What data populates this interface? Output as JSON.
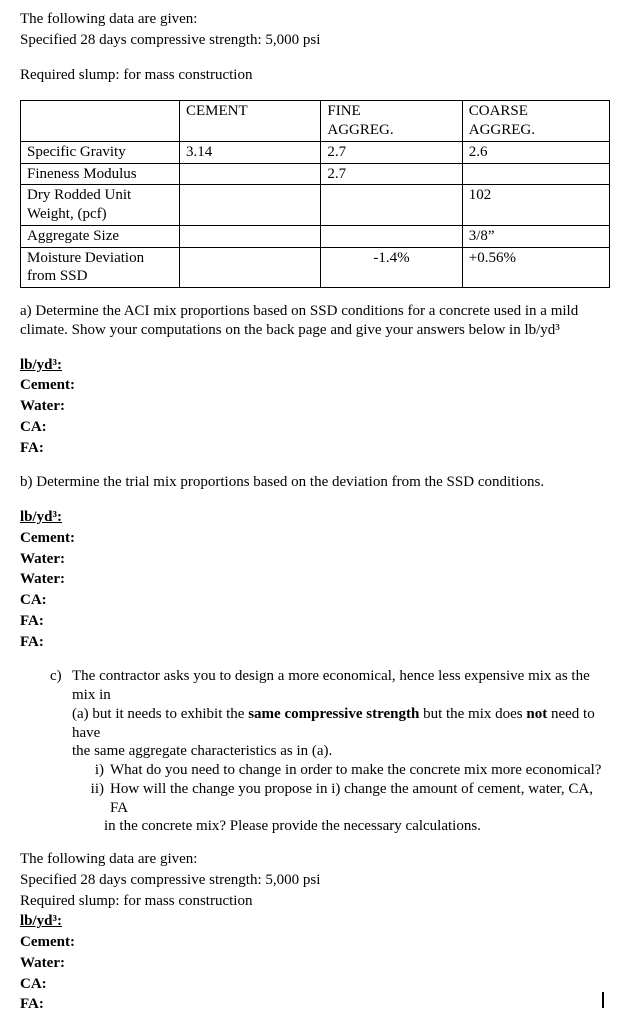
{
  "intro": {
    "line1": "The following data are given:",
    "line2": "Specified 28 days compressive strength: 5,000 psi",
    "required": "Required slump: for mass construction"
  },
  "table": {
    "header": {
      "cement": "CEMENT",
      "fine1": "FINE",
      "fine2": "AGGREG.",
      "coarse1": "COARSE",
      "coarse2": "AGGREG."
    },
    "rows": {
      "sg": {
        "label": "Specific Gravity",
        "cement": "3.14",
        "fine": "2.7",
        "coarse": "2.6"
      },
      "fm": {
        "label": "Fineness Modulus",
        "cement": "",
        "fine": "2.7",
        "coarse": ""
      },
      "druw": {
        "label1": "Dry Rodded Unit",
        "label2": "Weight, (pcf)",
        "cement": "",
        "fine": "",
        "coarse": "102"
      },
      "agg": {
        "label": "Aggregate Size",
        "cement": "",
        "fine": "",
        "coarse": "3/8”"
      },
      "moist": {
        "label1": "Moisture Deviation",
        "label2": "from SSD",
        "cement": "",
        "fine": "-1.4%",
        "coarse": "+0.56%"
      }
    }
  },
  "partA": {
    "text": "a) Determine the ACI mix proportions based on SSD conditions for a concrete used in a mild climate. Show your computations on the back page and give your answers below in lb/yd³",
    "heading": "lb/yd³:",
    "items": {
      "cement": "Cement:",
      "water": "Water:",
      "ca": "CA:",
      "fa": "FA:"
    }
  },
  "partB": {
    "text": "b) Determine the trial mix proportions based on the deviation from the SSD conditions.",
    "heading": "lb/yd³:",
    "items": {
      "cement": "Cement:",
      "water1": "Water:",
      "water2": "Water:",
      "ca": "CA:",
      "fa1": "FA:",
      "fa2": "FA:"
    }
  },
  "partC": {
    "marker": "c)",
    "main1": "The contractor asks you to design a more economical, hence less expensive mix as the mix in",
    "main2_prefix": "(a) but it needs to exhibit the ",
    "main2_bold": "same compressive strength",
    "main2_mid": " but the mix does ",
    "main2_bold2": "not",
    "main2_suffix": " need to have",
    "main3": "the same aggregate characteristics as in (a).",
    "i_marker": "i)",
    "i_text": "What do you need to change in order to make the concrete mix more economical?",
    "ii_marker": "ii)",
    "ii_text1": "How will the change you propose in i) change the amount of cement, water, CA, FA",
    "ii_text2": "in the concrete mix? Please provide the necessary calculations."
  },
  "final": {
    "line1": "The following data are given:",
    "line2": "Specified 28 days compressive strength: 5,000 psi",
    "line3": "Required slump: for mass construction",
    "heading": "lb/yd³:",
    "items": {
      "cement": "Cement:",
      "water": "Water:",
      "ca": "CA:",
      "fa": "FA:"
    }
  }
}
